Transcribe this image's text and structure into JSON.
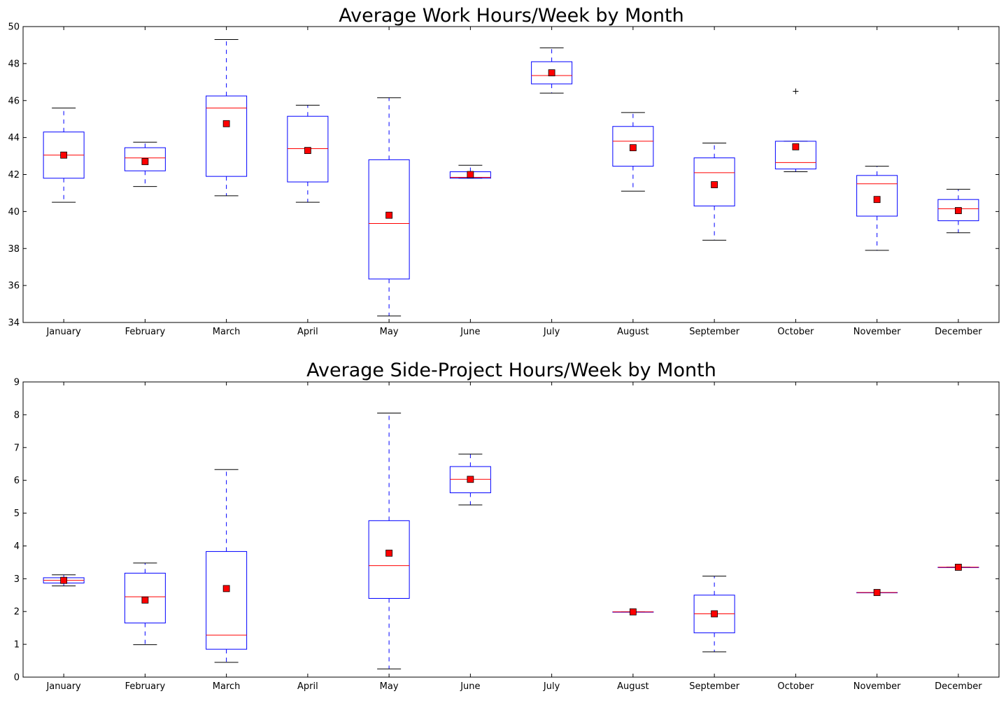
{
  "chart_data": [
    {
      "type": "box",
      "title": "Average Work Hours/Week by Month",
      "xlabel": "",
      "ylabel": "",
      "ylim": [
        34,
        50
      ],
      "yticks": [
        "34",
        "36",
        "38",
        "40",
        "42",
        "44",
        "46",
        "48",
        "50"
      ],
      "grid": false,
      "categories": [
        "January",
        "February",
        "March",
        "April",
        "May",
        "June",
        "July",
        "August",
        "September",
        "October",
        "November",
        "December"
      ],
      "boxes": [
        {
          "whisker_low": 40.5,
          "q1": 41.8,
          "median": 43.05,
          "q3": 44.3,
          "whisker_high": 45.6,
          "mean": 43.05,
          "outliers": []
        },
        {
          "whisker_low": 41.35,
          "q1": 42.2,
          "median": 42.9,
          "q3": 43.45,
          "whisker_high": 43.75,
          "mean": 42.7,
          "outliers": []
        },
        {
          "whisker_low": 40.85,
          "q1": 41.9,
          "median": 45.6,
          "q3": 46.25,
          "whisker_high": 49.3,
          "mean": 44.75,
          "outliers": []
        },
        {
          "whisker_low": 40.5,
          "q1": 41.6,
          "median": 43.4,
          "q3": 45.15,
          "whisker_high": 45.75,
          "mean": 43.3,
          "outliers": []
        },
        {
          "whisker_low": 34.35,
          "q1": 36.35,
          "median": 39.35,
          "q3": 42.8,
          "whisker_high": 46.15,
          "mean": 39.8,
          "outliers": []
        },
        {
          "whisker_low": 41.8,
          "q1": 41.8,
          "median": 41.85,
          "q3": 42.15,
          "whisker_high": 42.5,
          "mean": 42.0,
          "outliers": []
        },
        {
          "whisker_low": 46.4,
          "q1": 46.9,
          "median": 47.35,
          "q3": 48.1,
          "whisker_high": 48.85,
          "mean": 47.5,
          "outliers": []
        },
        {
          "whisker_low": 41.1,
          "q1": 42.45,
          "median": 43.8,
          "q3": 44.6,
          "whisker_high": 45.35,
          "mean": 43.45,
          "outliers": []
        },
        {
          "whisker_low": 38.45,
          "q1": 40.3,
          "median": 42.1,
          "q3": 42.9,
          "whisker_high": 43.7,
          "mean": 41.45,
          "outliers": []
        },
        {
          "whisker_low": 42.15,
          "q1": 42.3,
          "median": 42.65,
          "q3": 43.8,
          "whisker_high": 43.8,
          "mean": 43.5,
          "outliers": [
            46.5
          ]
        },
        {
          "whisker_low": 37.9,
          "q1": 39.75,
          "median": 41.5,
          "q3": 41.95,
          "whisker_high": 42.45,
          "mean": 40.65,
          "outliers": []
        },
        {
          "whisker_low": 38.85,
          "q1": 39.5,
          "median": 40.15,
          "q3": 40.65,
          "whisker_high": 41.2,
          "mean": 40.05,
          "outliers": []
        }
      ]
    },
    {
      "type": "box",
      "title": "Average Side-Project Hours/Week by Month",
      "xlabel": "",
      "ylabel": "",
      "ylim": [
        0,
        9
      ],
      "yticks": [
        "0",
        "1",
        "2",
        "3",
        "4",
        "5",
        "6",
        "7",
        "8",
        "9"
      ],
      "grid": false,
      "categories": [
        "January",
        "February",
        "March",
        "April",
        "May",
        "June",
        "July",
        "August",
        "September",
        "October",
        "November",
        "December"
      ],
      "boxes": [
        {
          "whisker_low": 2.78,
          "q1": 2.87,
          "median": 2.95,
          "q3": 3.03,
          "whisker_high": 3.12,
          "mean": 2.95,
          "outliers": []
        },
        {
          "whisker_low": 0.99,
          "q1": 1.65,
          "median": 2.45,
          "q3": 3.17,
          "whisker_high": 3.48,
          "mean": 2.35,
          "outliers": []
        },
        {
          "whisker_low": 0.45,
          "q1": 0.85,
          "median": 1.28,
          "q3": 3.83,
          "whisker_high": 6.33,
          "mean": 2.7,
          "outliers": []
        },
        null,
        {
          "whisker_low": 0.25,
          "q1": 2.4,
          "median": 3.4,
          "q3": 4.77,
          "whisker_high": 8.05,
          "mean": 3.78,
          "outliers": []
        },
        {
          "whisker_low": 5.25,
          "q1": 5.62,
          "median": 6.03,
          "q3": 6.42,
          "whisker_high": 6.8,
          "mean": 6.03,
          "outliers": []
        },
        null,
        {
          "whisker_low": 1.99,
          "q1": 1.99,
          "median": 1.99,
          "q3": 1.99,
          "whisker_high": 1.99,
          "mean": 1.99,
          "outliers": []
        },
        {
          "whisker_low": 0.77,
          "q1": 1.35,
          "median": 1.93,
          "q3": 2.5,
          "whisker_high": 3.08,
          "mean": 1.93,
          "outliers": []
        },
        null,
        {
          "whisker_low": 2.58,
          "q1": 2.58,
          "median": 2.58,
          "q3": 2.58,
          "whisker_high": 2.58,
          "mean": 2.58,
          "outliers": []
        },
        {
          "whisker_low": 3.35,
          "q1": 3.35,
          "median": 3.35,
          "q3": 3.35,
          "whisker_high": 3.35,
          "mean": 3.35,
          "outliers": []
        }
      ]
    }
  ],
  "colors": {
    "box": "#0000ff",
    "median": "#ff0000",
    "mean_marker": "#ff0000",
    "whisker_cap": "#000000",
    "axes": "#000000"
  }
}
